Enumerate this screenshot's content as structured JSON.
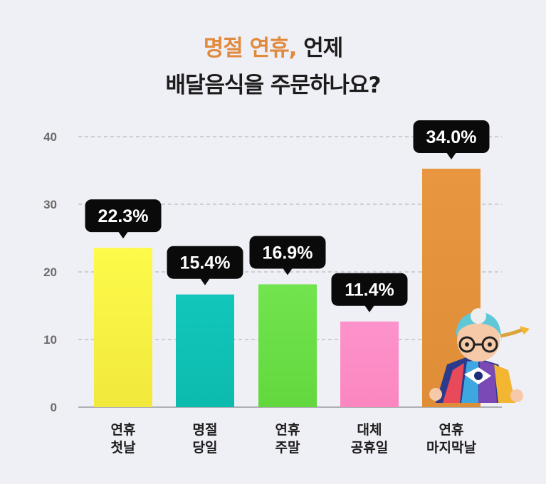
{
  "title": {
    "accent": "명절 연휴,",
    "rest": " 언제",
    "line2": "배달음식을 주문하나요?"
  },
  "chart_data": {
    "type": "bar",
    "categories": [
      [
        "연휴",
        "첫날"
      ],
      [
        "명절",
        "당일"
      ],
      [
        "연휴",
        "주말"
      ],
      [
        "대체",
        "공휴일"
      ],
      [
        "연휴",
        "마지막날"
      ]
    ],
    "values": [
      22.3,
      15.4,
      16.9,
      11.4,
      34.0
    ],
    "data_labels": [
      "22.3%",
      "15.4%",
      "16.9%",
      "11.4%",
      "34.0%"
    ],
    "colors": [
      "#fbf742",
      "#10c4b8",
      "#6ee24a",
      "#fd8fc8",
      "#e6933f"
    ],
    "yticks": [
      "0",
      "10",
      "20",
      "30",
      "40"
    ],
    "ylim": [
      0,
      40
    ],
    "grid": true,
    "legend": "none"
  },
  "mascot": {
    "icon": "grandma-mascot-icon"
  }
}
